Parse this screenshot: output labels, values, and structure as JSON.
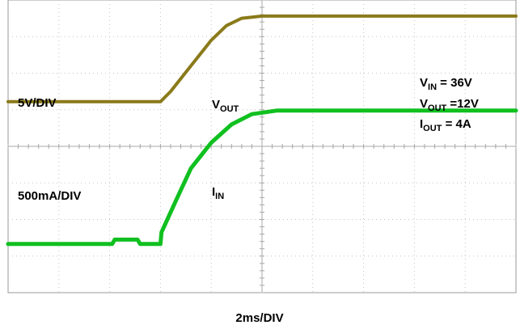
{
  "chart_data": {
    "type": "line",
    "title": "",
    "xlabel": "2ms/DIV",
    "ylabel": "",
    "divisions": {
      "x": 10,
      "y": 8
    },
    "x_unit": "div",
    "y_unit": "div",
    "xlim": [
      0,
      10
    ],
    "ylim": [
      0,
      8
    ],
    "grid": true,
    "series": [
      {
        "key": "vout",
        "color": "#8a7a1a",
        "scale_label": "5V/DIV",
        "trace_label": {
          "main": "V",
          "sub": "OUT"
        },
        "points": [
          [
            0,
            5.22
          ],
          [
            3.0,
            5.22
          ],
          [
            3.2,
            5.5
          ],
          [
            3.6,
            6.2
          ],
          [
            4.0,
            6.9
          ],
          [
            4.3,
            7.3
          ],
          [
            4.6,
            7.5
          ],
          [
            5.0,
            7.56
          ],
          [
            10,
            7.56
          ]
        ]
      },
      {
        "key": "iin",
        "color": "#10c020",
        "scale_label": "500mA/DIV",
        "trace_label": {
          "main": "I",
          "sub": "IN"
        },
        "points": [
          [
            0,
            1.33
          ],
          [
            2.05,
            1.33
          ],
          [
            2.1,
            1.45
          ],
          [
            2.55,
            1.45
          ],
          [
            2.6,
            1.33
          ],
          [
            3.0,
            1.33
          ],
          [
            3.02,
            1.65
          ],
          [
            3.3,
            2.5
          ],
          [
            3.6,
            3.4
          ],
          [
            4.0,
            4.1
          ],
          [
            4.4,
            4.6
          ],
          [
            4.8,
            4.88
          ],
          [
            5.3,
            4.98
          ],
          [
            10,
            4.98
          ]
        ]
      }
    ],
    "conditions": [
      {
        "main": "V",
        "sub": "IN",
        "value": " = 36V"
      },
      {
        "main": "V",
        "sub": "OUT",
        "value": " =12V"
      },
      {
        "main": "I",
        "sub": "OUT",
        "value": " = 4A"
      }
    ]
  }
}
